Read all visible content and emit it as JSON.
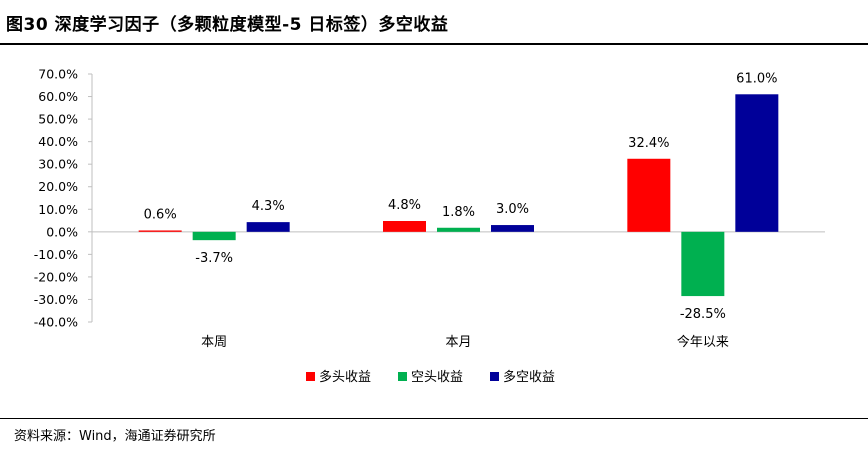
{
  "header": {
    "title": "图30 深度学习因子（多颗粒度模型-5 日标签）多空收益"
  },
  "footer": {
    "source": "资料来源：Wind，海通证券研究所"
  },
  "chart_data": {
    "type": "bar",
    "categories": [
      "本周",
      "本月",
      "今年以来"
    ],
    "series": [
      {
        "name": "多头收益",
        "color": "#FF0000",
        "values": [
          0.6,
          4.8,
          32.4
        ],
        "labels": [
          "0.6%",
          "4.8%",
          "32.4%"
        ]
      },
      {
        "name": "空头收益",
        "color": "#00B050",
        "values": [
          -3.7,
          1.8,
          -28.5
        ],
        "labels": [
          "-3.7%",
          "1.8%",
          "-28.5%"
        ]
      },
      {
        "name": "多空收益",
        "color": "#000099",
        "values": [
          4.3,
          3.0,
          61.0
        ],
        "labels": [
          "4.3%",
          "3.0%",
          "61.0%"
        ]
      }
    ],
    "ylim": [
      -40,
      70
    ],
    "yticks": [
      70,
      60,
      50,
      40,
      30,
      20,
      10,
      0,
      -10,
      -20,
      -30,
      -40
    ],
    "ytick_labels": [
      "70.0%",
      "60.0%",
      "50.0%",
      "40.0%",
      "30.0%",
      "20.0%",
      "10.0%",
      "0.0%",
      "-10.0%",
      "-20.0%",
      "-30.0%",
      "-40.0%"
    ],
    "grid": false,
    "legend": "bottom-center",
    "title": "",
    "xlabel": "",
    "ylabel": ""
  }
}
